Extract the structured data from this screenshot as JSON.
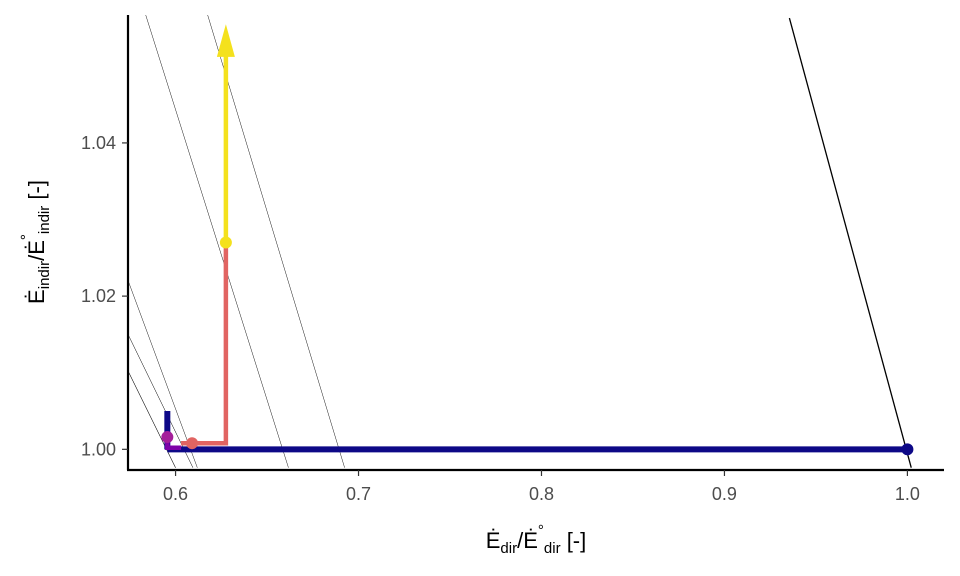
{
  "chart_data": {
    "type": "line",
    "xlabel": {
      "base": "Ė",
      "sub": "dir",
      "sep": "/",
      "base2": "Ė",
      "sup2": "°",
      "sub2": "dir",
      "unit": " [-]"
    },
    "ylabel": {
      "base": "Ė",
      "sub": "indir",
      "sep": "/",
      "base2": "Ė",
      "sup2": "°",
      "sub2": "indir",
      "unit": " [-]"
    },
    "xlim": [
      0.574,
      1.02
    ],
    "ylim": [
      0.9973,
      1.0567
    ],
    "x_ticks": [
      0.6,
      0.7,
      0.8,
      0.9,
      1.0
    ],
    "x_tick_labels": [
      "0.6",
      "0.7",
      "0.8",
      "0.9",
      "1.0"
    ],
    "y_ticks": [
      1.0,
      1.02,
      1.04
    ],
    "y_tick_labels": [
      "1.00",
      "1.02",
      "1.04"
    ],
    "grid": false,
    "colors": {
      "navy": "#0d0887",
      "purple": "#7e03a8",
      "magenta": "#a41f9a",
      "orange": "#e16462",
      "yellow": "#f0f921",
      "yellow_arrow": "#f4e11d",
      "black": "#000000"
    },
    "reference_lines": [
      {
        "points": [
          [
            0.5,
            1.0462
          ],
          [
            0.6,
            0.9976
          ]
        ],
        "width": 0.55
      },
      {
        "points": [
          [
            0.5,
            1.0513
          ],
          [
            0.6095,
            0.9976
          ]
        ],
        "width": 0.5
      },
      {
        "points": [
          [
            0.5,
            1.0698
          ],
          [
            0.6119,
            0.9976
          ]
        ],
        "width": 0.45
      },
      {
        "points": [
          [
            0.5,
            1.1201
          ],
          [
            0.6617,
            0.9976
          ]
        ],
        "width": 0.45
      },
      {
        "points": [
          [
            0.5,
            1.1495
          ],
          [
            0.6924,
            0.9976
          ]
        ],
        "width": 0.45
      },
      {
        "points": [
          [
            0.9355,
            1.0563
          ],
          [
            1.0021,
            0.9976
          ]
        ],
        "width": 1.3
      }
    ],
    "series": [
      {
        "color_key": "navy",
        "width": 6,
        "points": [
          [
            1.0,
            1.0
          ],
          [
            0.5955,
            1.0
          ]
        ]
      },
      {
        "color_key": "navy",
        "width": 6,
        "points": [
          [
            0.5955,
            1.0
          ],
          [
            0.5955,
            1.005
          ]
        ]
      },
      {
        "color_key": "purple",
        "width": 4.5,
        "points": [
          [
            0.5955,
            1.0014
          ],
          [
            0.5955,
            1.0002
          ],
          [
            0.603,
            1.0002
          ]
        ]
      },
      {
        "color_key": "orange",
        "width": 4.5,
        "points": [
          [
            0.603,
            1.0008
          ],
          [
            0.6275,
            1.0008
          ],
          [
            0.6275,
            1.027
          ]
        ]
      },
      {
        "color_key": "yellow_arrow",
        "width": 4.5,
        "points": [
          [
            0.6275,
            1.027
          ],
          [
            0.6275,
            1.0515
          ]
        ],
        "arrow_to": [
          0.6275,
          1.0555
        ]
      }
    ],
    "markers": [
      {
        "x": 1.0,
        "y": 1.0,
        "color_key": "navy"
      },
      {
        "x": 0.5955,
        "y": 1.0016,
        "color_key": "magenta"
      },
      {
        "x": 0.609,
        "y": 1.0008,
        "color_key": "orange"
      },
      {
        "x": 0.6275,
        "y": 1.027,
        "color_key": "yellow_arrow"
      }
    ]
  }
}
